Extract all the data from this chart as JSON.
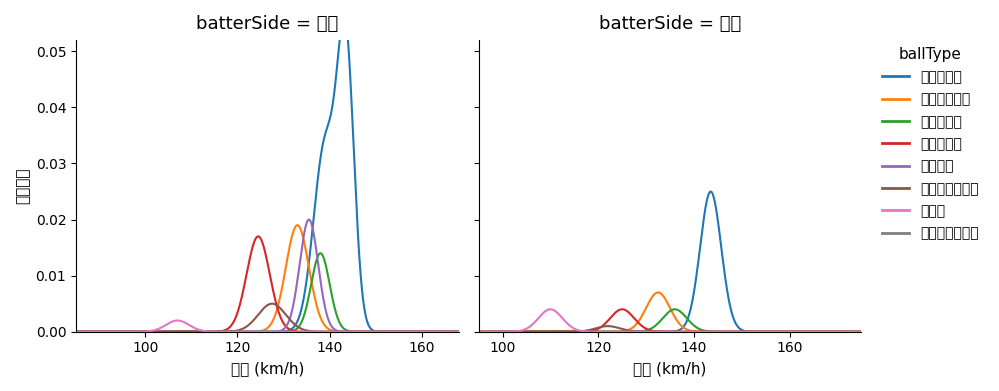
{
  "title_right": "batterSide = 右打",
  "title_left": "batterSide = 左打",
  "ylabel": "確率密度",
  "xlabel": "球速 (km/h)",
  "legend_title": "ballType",
  "ylim": [
    0,
    0.052
  ],
  "background_color": "#ffffff",
  "ball_types_right": [
    {
      "name": "ストレート",
      "color": "#1f77b4",
      "components": [
        {
          "mean": 143.5,
          "std": 1.8,
          "peak": 0.049
        },
        {
          "mean": 139.0,
          "std": 2.5,
          "peak": 0.033
        }
      ]
    },
    {
      "name": "カットボール",
      "color": "#ff7f0e",
      "components": [
        {
          "mean": 133.0,
          "std": 2.5,
          "peak": 0.019
        }
      ]
    },
    {
      "name": "ツーシーム",
      "color": "#2ca02c",
      "components": [
        {
          "mean": 138.0,
          "std": 2.0,
          "peak": 0.014
        }
      ]
    },
    {
      "name": "スライダー",
      "color": "#d62728",
      "components": [
        {
          "mean": 124.5,
          "std": 2.5,
          "peak": 0.017
        }
      ]
    },
    {
      "name": "フォーク",
      "color": "#9467bd",
      "components": [
        {
          "mean": 135.5,
          "std": 2.0,
          "peak": 0.02
        }
      ]
    },
    {
      "name": "チェンジアップ",
      "color": "#8c564b",
      "components": [
        {
          "mean": 127.5,
          "std": 3.0,
          "peak": 0.005
        }
      ]
    },
    {
      "name": "カーブ",
      "color": "#e377c2",
      "components": [
        {
          "mean": 107.0,
          "std": 2.5,
          "peak": 0.002
        }
      ]
    },
    {
      "name": "ナックルカーブ",
      "color": "#7f7f7f",
      "components": []
    }
  ],
  "ball_types_left": [
    {
      "name": "ストレート",
      "color": "#1f77b4",
      "components": [
        {
          "mean": 143.5,
          "std": 2.2,
          "peak": 0.025
        }
      ]
    },
    {
      "name": "カットボール",
      "color": "#ff7f0e",
      "components": [
        {
          "mean": 132.5,
          "std": 2.5,
          "peak": 0.007
        }
      ]
    },
    {
      "name": "ツーシーム",
      "color": "#2ca02c",
      "components": [
        {
          "mean": 136.0,
          "std": 2.5,
          "peak": 0.004
        }
      ]
    },
    {
      "name": "スライダー",
      "color": "#d62728",
      "components": [
        {
          "mean": 125.0,
          "std": 2.5,
          "peak": 0.004
        }
      ]
    },
    {
      "name": "フォーク",
      "color": "#9467bd",
      "components": []
    },
    {
      "name": "チェンジアップ",
      "color": "#8c564b",
      "components": [
        {
          "mean": 122.0,
          "std": 2.5,
          "peak": 0.001
        }
      ]
    },
    {
      "name": "カーブ",
      "color": "#e377c2",
      "components": [
        {
          "mean": 110.0,
          "std": 2.5,
          "peak": 0.004
        }
      ]
    },
    {
      "name": "ナックルカーブ",
      "color": "#7f7f7f",
      "components": []
    }
  ]
}
